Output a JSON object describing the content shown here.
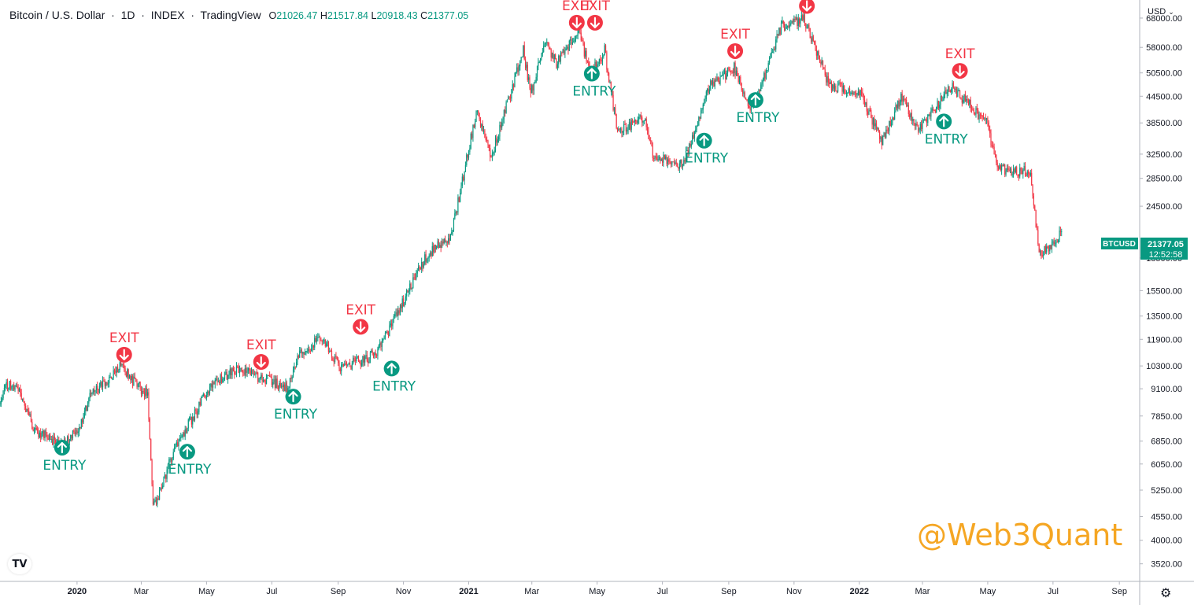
{
  "header": {
    "symbol": "Bitcoin / U.S. Dollar",
    "interval": "1D",
    "exchange": "INDEX",
    "source": "TradingView",
    "open_label": "O",
    "open": "21026.47",
    "high_label": "H",
    "high": "21517.84",
    "low_label": "L",
    "low": "20918.43",
    "close_label": "C",
    "close": "21377.05"
  },
  "currency_select": "USD",
  "price_tag": {
    "symbol": "BTCUSD",
    "price": "21377.05",
    "countdown": "12:52:58"
  },
  "watermark": "@Web3Quant",
  "logo": "TV",
  "colors": {
    "up": "#089981",
    "down": "#f23645",
    "entry": "#089981",
    "exit": "#f23645",
    "watermark": "#f5a623"
  },
  "icons": {
    "settings": "gear-icon",
    "logo": "tradingview-logo-icon",
    "entry": "arrow-up-circle-icon",
    "exit": "arrow-down-circle-icon"
  },
  "chart_data": {
    "type": "candlestick",
    "symbol": "BTCUSD",
    "interval": "1D",
    "y_scale": "log",
    "ylim": [
      3200,
      75000
    ],
    "price_ticks": [
      68000,
      58000,
      50500,
      44500,
      38500,
      32500,
      28500,
      24500,
      18500,
      15500,
      13500,
      11900,
      10300,
      9100,
      7850,
      6850,
      6050,
      5250,
      4550,
      4000,
      3520
    ],
    "price_tick_labels": [
      "68000.00",
      "58000.00",
      "50500.00",
      "44500.00",
      "38500.00",
      "32500.00",
      "28500.00",
      "24500.00",
      "18500.00",
      "15500.00",
      "13500.00",
      "11900.00",
      "10300.00",
      "9100.00",
      "7850.00",
      "6850.00",
      "6050.00",
      "5250.00",
      "4550.00",
      "4000.00",
      "3520.00"
    ],
    "time_ticks": [
      {
        "date": "2020-01-01",
        "label": "2020",
        "bold": true
      },
      {
        "date": "2020-03-01",
        "label": "Mar"
      },
      {
        "date": "2020-05-01",
        "label": "May"
      },
      {
        "date": "2020-07-01",
        "label": "Jul"
      },
      {
        "date": "2020-09-01",
        "label": "Sep"
      },
      {
        "date": "2020-11-01",
        "label": "Nov"
      },
      {
        "date": "2021-01-01",
        "label": "2021",
        "bold": true
      },
      {
        "date": "2021-03-01",
        "label": "Mar"
      },
      {
        "date": "2021-05-01",
        "label": "May"
      },
      {
        "date": "2021-07-01",
        "label": "Jul"
      },
      {
        "date": "2021-09-01",
        "label": "Sep"
      },
      {
        "date": "2021-11-01",
        "label": "Nov"
      },
      {
        "date": "2022-01-01",
        "label": "2022",
        "bold": true
      },
      {
        "date": "2022-03-01",
        "label": "Mar"
      },
      {
        "date": "2022-05-01",
        "label": "May"
      },
      {
        "date": "2022-07-01",
        "label": "Jul"
      },
      {
        "date": "2022-09-01",
        "label": "Sep"
      }
    ],
    "x_range": [
      "2019-10-21",
      "2022-09-20"
    ],
    "price_path": [
      [
        "2019-10-21",
        8200
      ],
      [
        "2019-10-26",
        9300
      ],
      [
        "2019-11-05",
        9300
      ],
      [
        "2019-11-22",
        7300
      ],
      [
        "2019-12-17",
        6700
      ],
      [
        "2020-01-01",
        7200
      ],
      [
        "2020-01-14",
        8800
      ],
      [
        "2020-02-12",
        10350
      ],
      [
        "2020-02-20",
        9600
      ],
      [
        "2020-03-07",
        8800
      ],
      [
        "2020-03-12",
        4900
      ],
      [
        "2020-03-16",
        5000
      ],
      [
        "2020-04-01",
        6600
      ],
      [
        "2020-04-29",
        8700
      ],
      [
        "2020-05-09",
        9500
      ],
      [
        "2020-06-01",
        10100
      ],
      [
        "2020-06-23",
        9600
      ],
      [
        "2020-07-15",
        9200
      ],
      [
        "2020-07-27",
        11000
      ],
      [
        "2020-08-17",
        12000
      ],
      [
        "2020-09-03",
        10200
      ],
      [
        "2020-09-30",
        10800
      ],
      [
        "2020-10-10",
        11400
      ],
      [
        "2020-10-21",
        12900
      ],
      [
        "2020-11-06",
        15500
      ],
      [
        "2020-11-24",
        19000
      ],
      [
        "2020-12-16",
        21000
      ],
      [
        "2021-01-08",
        41000
      ],
      [
        "2021-01-22",
        32000
      ],
      [
        "2021-02-21",
        57000
      ],
      [
        "2021-02-28",
        45000
      ],
      [
        "2021-03-13",
        60000
      ],
      [
        "2021-03-24",
        53000
      ],
      [
        "2021-04-14",
        63000
      ],
      [
        "2021-04-25",
        50000
      ],
      [
        "2021-05-08",
        57000
      ],
      [
        "2021-05-19",
        38000
      ],
      [
        "2021-05-24",
        37000
      ],
      [
        "2021-06-14",
        40000
      ],
      [
        "2021-06-22",
        32500
      ],
      [
        "2021-07-20",
        30500
      ],
      [
        "2021-08-14",
        47000
      ],
      [
        "2021-09-06",
        52000
      ],
      [
        "2021-09-21",
        42000
      ],
      [
        "2021-10-01",
        47000
      ],
      [
        "2021-10-20",
        65000
      ],
      [
        "2021-11-10",
        68000
      ],
      [
        "2021-12-04",
        47000
      ],
      [
        "2021-12-31",
        46000
      ],
      [
        "2022-01-22",
        35000
      ],
      [
        "2022-02-10",
        44500
      ],
      [
        "2022-02-24",
        37000
      ],
      [
        "2022-03-28",
        47000
      ],
      [
        "2022-04-30",
        38500
      ],
      [
        "2022-05-10",
        30000
      ],
      [
        "2022-06-10",
        29500
      ],
      [
        "2022-06-18",
        19000
      ],
      [
        "2022-06-30",
        20000
      ],
      [
        "2022-07-09",
        21377
      ]
    ],
    "signals": [
      {
        "type": "ENTRY",
        "date": "2019-12-18",
        "price": 6900
      },
      {
        "type": "EXIT",
        "date": "2020-02-14",
        "price": 10400
      },
      {
        "type": "ENTRY",
        "date": "2020-04-13",
        "price": 6750
      },
      {
        "type": "EXIT",
        "date": "2020-06-21",
        "price": 10000
      },
      {
        "type": "ENTRY",
        "date": "2020-07-21",
        "price": 9100
      },
      {
        "type": "EXIT",
        "date": "2020-09-22",
        "price": 12100
      },
      {
        "type": "ENTRY",
        "date": "2020-10-21",
        "price": 10600
      },
      {
        "type": "EXIT",
        "date": "2021-04-12",
        "price": 63000
      },
      {
        "type": "ENTRY",
        "date": "2021-04-26",
        "price": 52500
      },
      {
        "type": "EXIT",
        "date": "2021-04-29",
        "price": 63000
      },
      {
        "type": "ENTRY",
        "date": "2021-08-09",
        "price": 36500
      },
      {
        "type": "EXIT",
        "date": "2021-09-07",
        "price": 54000
      },
      {
        "type": "ENTRY",
        "date": "2021-09-26",
        "price": 45500
      },
      {
        "type": "EXIT",
        "date": "2021-11-13",
        "price": 69000
      },
      {
        "type": "ENTRY",
        "date": "2022-03-21",
        "price": 40500
      },
      {
        "type": "EXIT",
        "date": "2022-04-05",
        "price": 48500
      }
    ]
  }
}
